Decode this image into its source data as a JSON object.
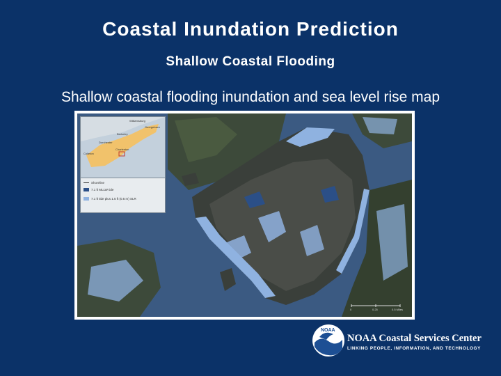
{
  "slide": {
    "title": "Coastal Inundation Prediction",
    "subtitle": "Shallow Coastal Flooding",
    "caption": "Shallow coastal flooding inundation and sea level rise map"
  },
  "map": {
    "inset_labels": [
      "Williamsburg",
      "Georgetown",
      "Berkeley",
      "Dorchester",
      "Colleton",
      "Charleston"
    ],
    "legend": {
      "items": [
        {
          "label": "Shoreline"
        },
        {
          "label": "7.1 ft MLLW tide"
        },
        {
          "label": "7.1 ft tide plus 1.5 ft (0.5 m) SLR"
        }
      ]
    },
    "scale": {
      "start": "0",
      "mid": "0.25",
      "end": "0.5 Miles"
    }
  },
  "logo": {
    "circle_text": "NOAA",
    "name": "NOAA Coastal Services Center",
    "tagline": "LINKING PEOPLE, INFORMATION, AND TECHNOLOGY"
  },
  "colors": {
    "background": "#0b3268",
    "water": "#3b5a82",
    "flood_shallow": "#8fb2e0",
    "flood_deep": "#2b4f87",
    "land": "#3a3f3a"
  }
}
